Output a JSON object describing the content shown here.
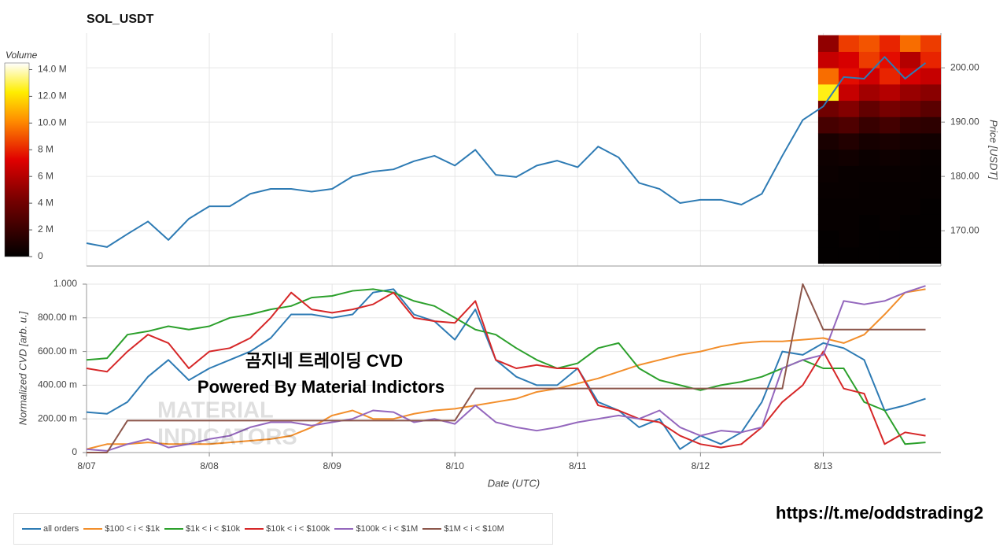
{
  "chart_data": [
    {
      "type": "line",
      "title": "SOL_USDT",
      "y_label": "Price [USDT]",
      "x": [
        0,
        4,
        8,
        12,
        16,
        20,
        24,
        28,
        32,
        36,
        40,
        44,
        48,
        52,
        56,
        60,
        64,
        68,
        72,
        76,
        80,
        84,
        88,
        92,
        96,
        100,
        104,
        108,
        112,
        116,
        120,
        124,
        128,
        132,
        136,
        140,
        144,
        148,
        152,
        156,
        160,
        164
      ],
      "xlim": [
        0,
        167
      ],
      "xticks": [
        0,
        24,
        48,
        72,
        96,
        120,
        144
      ],
      "ylim": [
        163.5,
        206.4
      ],
      "yticks": [
        {
          "value": 170,
          "label": "170.00"
        },
        {
          "value": 180,
          "label": "180.00"
        },
        {
          "value": 190,
          "label": "190.00"
        },
        {
          "value": 200,
          "label": "200.00"
        }
      ],
      "grid": true,
      "series": [
        {
          "color": "#2e7bb4",
          "values": [
            167.7,
            167.0,
            169.4,
            171.7,
            168.3,
            172.2,
            174.5,
            174.5,
            176.8,
            177.7,
            177.7,
            177.2,
            177.7,
            180.0,
            180.9,
            181.3,
            182.8,
            183.8,
            182.0,
            184.9,
            180.3,
            179.9,
            182.0,
            182.9,
            181.7,
            185.5,
            183.5,
            178.8,
            177.7,
            175.1,
            175.7,
            175.7,
            174.8,
            176.8,
            183.8,
            190.4,
            192.9,
            198.3,
            198.0,
            202.0,
            198.0,
            200.9
          ]
        }
      ],
      "heatmap": {
        "x_edges": [
          143,
          147,
          151,
          155,
          159,
          163,
          167
        ],
        "y_edges": [
          164,
          167,
          170,
          173,
          176,
          179,
          182,
          185,
          188,
          191,
          194,
          197,
          200,
          203,
          206
        ],
        "values": [
          [
            0.1,
            0.1,
            0.1,
            0.1,
            0.1,
            0.1
          ],
          [
            0.1,
            0.2,
            0.1,
            0.1,
            0.1,
            0.1
          ],
          [
            0.2,
            0.2,
            0.1,
            0.2,
            0.1,
            0.1
          ],
          [
            0.2,
            0.2,
            0.2,
            0.2,
            0.2,
            0.1
          ],
          [
            0.3,
            0.3,
            0.2,
            0.2,
            0.2,
            0.2
          ],
          [
            0.4,
            0.3,
            0.3,
            0.3,
            0.3,
            0.2
          ],
          [
            0.5,
            0.6,
            0.4,
            0.5,
            0.4,
            0.3
          ],
          [
            0.9,
            1.2,
            0.8,
            0.9,
            0.7,
            0.6
          ],
          [
            2.5,
            2.8,
            2.0,
            2.4,
            1.8,
            1.6
          ],
          [
            4.0,
            4.6,
            3.5,
            4.2,
            3.8,
            3.2
          ],
          [
            12.5,
            6.5,
            5.5,
            6.0,
            5.2,
            4.8
          ],
          [
            9.5,
            7.5,
            6.8,
            8.0,
            7.0,
            6.5
          ],
          [
            6.5,
            7.0,
            8.5,
            7.5,
            6.0,
            8.0
          ],
          [
            5.0,
            8.5,
            9.0,
            8.0,
            9.5,
            8.5
          ]
        ]
      },
      "colorbar": {
        "title": "Volume",
        "clim": [
          0,
          14.5
        ],
        "ticks": [
          0,
          {
            "value": 2,
            "label": "2 M"
          },
          {
            "value": 4,
            "label": "4 M"
          },
          {
            "value": 6,
            "label": "6 M"
          },
          {
            "value": 8,
            "label": "8 M"
          },
          {
            "value": 10,
            "label": "10.0 M"
          },
          {
            "value": 12,
            "label": "12.0 M"
          },
          {
            "value": 14,
            "label": "14.0 M"
          }
        ]
      }
    },
    {
      "type": "line",
      "x_label": "Date (UTC)",
      "y_label": "Normalized CVD [arb. u.]",
      "x": [
        0,
        4,
        8,
        12,
        16,
        20,
        24,
        28,
        32,
        36,
        40,
        44,
        48,
        52,
        56,
        60,
        64,
        68,
        72,
        76,
        80,
        84,
        88,
        92,
        96,
        100,
        104,
        108,
        112,
        116,
        120,
        124,
        128,
        132,
        136,
        140,
        144,
        148,
        152,
        156,
        160,
        164
      ],
      "xlim": [
        0,
        167
      ],
      "xticks": [
        {
          "value": 0,
          "label": "8/07"
        },
        {
          "value": 24,
          "label": "8/08"
        },
        {
          "value": 48,
          "label": "8/09"
        },
        {
          "value": 72,
          "label": "8/10"
        },
        {
          "value": 96,
          "label": "8/11"
        },
        {
          "value": 120,
          "label": "8/12"
        },
        {
          "value": 144,
          "label": "8/13"
        }
      ],
      "ylim": [
        0,
        1
      ],
      "yticks": [
        0,
        {
          "value": 0.2,
          "label": "200.00 m"
        },
        {
          "value": 0.4,
          "label": "400.00 m"
        },
        {
          "value": 0.6,
          "label": "600.00 m"
        },
        {
          "value": 0.8,
          "label": "800.00 m"
        },
        {
          "value": 1,
          "label": "1.000"
        }
      ],
      "grid": true,
      "legend": "bottom",
      "series": [
        {
          "name": "all orders",
          "color": "#2e7bb4",
          "values": [
            0.24,
            0.23,
            0.3,
            0.45,
            0.55,
            0.43,
            0.5,
            0.55,
            0.6,
            0.68,
            0.82,
            0.82,
            0.8,
            0.82,
            0.95,
            0.97,
            0.82,
            0.78,
            0.67,
            0.85,
            0.55,
            0.45,
            0.4,
            0.4,
            0.5,
            0.3,
            0.25,
            0.15,
            0.2,
            0.02,
            0.1,
            0.05,
            0.12,
            0.3,
            0.6,
            0.58,
            0.65,
            0.62,
            0.55,
            0.25,
            0.28,
            0.32
          ]
        },
        {
          "name": "$100 < i < $1k",
          "color": "#f28e2b",
          "values": [
            0.02,
            0.05,
            0.05,
            0.06,
            0.05,
            0.05,
            0.05,
            0.06,
            0.07,
            0.08,
            0.1,
            0.15,
            0.22,
            0.25,
            0.2,
            0.2,
            0.23,
            0.25,
            0.26,
            0.28,
            0.3,
            0.32,
            0.36,
            0.38,
            0.41,
            0.44,
            0.48,
            0.52,
            0.55,
            0.58,
            0.6,
            0.63,
            0.65,
            0.66,
            0.66,
            0.67,
            0.68,
            0.65,
            0.7,
            0.82,
            0.95,
            0.97
          ]
        },
        {
          "name": "$1k < i < $10k",
          "color": "#2ca02c",
          "values": [
            0.55,
            0.56,
            0.7,
            0.72,
            0.75,
            0.73,
            0.75,
            0.8,
            0.82,
            0.85,
            0.87,
            0.92,
            0.93,
            0.96,
            0.97,
            0.95,
            0.9,
            0.87,
            0.8,
            0.73,
            0.7,
            0.62,
            0.55,
            0.5,
            0.53,
            0.62,
            0.65,
            0.5,
            0.43,
            0.4,
            0.37,
            0.4,
            0.42,
            0.45,
            0.5,
            0.55,
            0.5,
            0.5,
            0.3,
            0.25,
            0.05,
            0.06
          ]
        },
        {
          "name": "$10k < i < $100k",
          "color": "#d62728",
          "values": [
            0.5,
            0.48,
            0.6,
            0.7,
            0.65,
            0.5,
            0.6,
            0.62,
            0.68,
            0.8,
            0.95,
            0.85,
            0.83,
            0.85,
            0.88,
            0.95,
            0.8,
            0.78,
            0.77,
            0.9,
            0.55,
            0.5,
            0.52,
            0.5,
            0.5,
            0.28,
            0.25,
            0.2,
            0.18,
            0.1,
            0.05,
            0.03,
            0.05,
            0.15,
            0.3,
            0.4,
            0.6,
            0.38,
            0.35,
            0.05,
            0.12,
            0.1
          ]
        },
        {
          "name": "$100k < i < $1M",
          "color": "#9467bd",
          "values": [
            0.02,
            0.01,
            0.05,
            0.08,
            0.03,
            0.05,
            0.08,
            0.1,
            0.15,
            0.18,
            0.18,
            0.16,
            0.18,
            0.2,
            0.25,
            0.24,
            0.18,
            0.2,
            0.17,
            0.28,
            0.18,
            0.15,
            0.13,
            0.15,
            0.18,
            0.2,
            0.22,
            0.2,
            0.25,
            0.15,
            0.1,
            0.13,
            0.12,
            0.15,
            0.5,
            0.55,
            0.58,
            0.9,
            0.88,
            0.9,
            0.95,
            0.99
          ]
        },
        {
          "name": "$1M < i < $10M",
          "color": "#8c564b",
          "values": [
            0,
            0,
            0.19,
            0.19,
            0.19,
            0.19,
            0.19,
            0.19,
            0.19,
            0.19,
            0.19,
            0.19,
            0.19,
            0.19,
            0.19,
            0.19,
            0.19,
            0.19,
            0.19,
            0.38,
            0.38,
            0.38,
            0.38,
            0.38,
            0.38,
            0.38,
            0.38,
            0.38,
            0.38,
            0.38,
            0.38,
            0.38,
            0.38,
            0.38,
            0.38,
            1,
            0.73,
            0.73,
            0.73,
            0.73,
            0.73,
            0.73
          ]
        }
      ]
    }
  ],
  "annotations": [
    "곰지네 트레이딩 CVD",
    "Powered By Material Indictors"
  ],
  "watermark": [
    "MATERIAL",
    "INDICATORS"
  ],
  "footer_link": "https://t.me/oddstrading2"
}
